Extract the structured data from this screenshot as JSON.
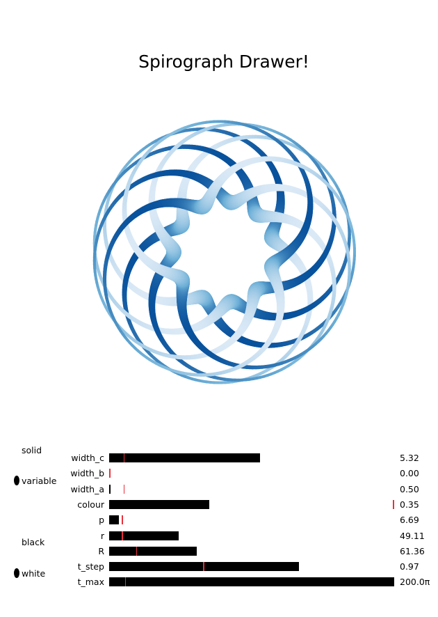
{
  "title": "Spirograph Drawer!",
  "figure": {
    "R": 61.36,
    "r": 49.11,
    "p": 6.69,
    "width_a": 0.5,
    "width_b": 0.0,
    "width_c": 5.32,
    "colormap": "Blues",
    "colors": {
      "light": "#dbe9f6",
      "mid": "#6baed6",
      "dark": "#08519c"
    }
  },
  "width_mode": {
    "options": [
      {
        "label": "solid",
        "selected": false
      },
      {
        "label": "variable",
        "selected": true
      }
    ]
  },
  "background": {
    "options": [
      {
        "label": "black",
        "selected": false
      },
      {
        "label": "white",
        "selected": true
      }
    ]
  },
  "sliders": [
    {
      "name": "width_c",
      "label": "width_c",
      "value_text": "5.32",
      "fraction": 0.53,
      "init_fraction": 0.05
    },
    {
      "name": "width_b",
      "label": "width_b",
      "value_text": "0.00",
      "fraction": 0.0,
      "init_fraction": 0.0
    },
    {
      "name": "width_a",
      "label": "width_a",
      "value_text": "0.50",
      "fraction": 0.005,
      "init_fraction": 0.05
    },
    {
      "name": "colour",
      "label": "colour",
      "value_text": "0.35",
      "fraction": 0.35,
      "init_fraction": 1.0
    },
    {
      "name": "p",
      "label": "p",
      "value_text": "6.69",
      "fraction": 0.033,
      "init_fraction": 0.045
    },
    {
      "name": "r",
      "label": "r",
      "value_text": "49.11",
      "fraction": 0.245,
      "init_fraction": 0.045
    },
    {
      "name": "R",
      "label": "R",
      "value_text": "61.36",
      "fraction": 0.307,
      "init_fraction": 0.095
    },
    {
      "name": "t_step",
      "label": "t_step",
      "value_text": "0.97",
      "fraction": 0.665,
      "init_fraction": 0.33
    },
    {
      "name": "t_max",
      "label": "t_max",
      "value_text": "200.0π",
      "fraction": 1.0,
      "init_fraction": 0.055
    }
  ],
  "colors": {
    "slider_fill": "#000000",
    "slider_init": "#e8303a",
    "background": "#ffffff"
  }
}
